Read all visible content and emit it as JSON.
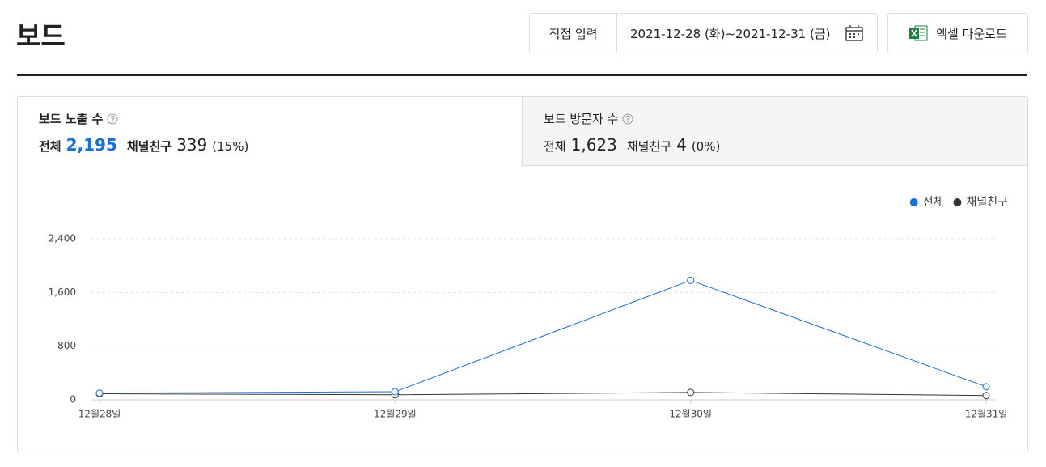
{
  "header": {
    "title": "보드",
    "date_mode": "직접 입력",
    "date_range": "2021-12-28 (화)~2021-12-31 (금)",
    "download": "엑셀 다운로드"
  },
  "tabs": [
    {
      "title": "보드 노출 수",
      "total_label": "전체",
      "total": "2,195",
      "friend_label": "채널친구",
      "friend": "339",
      "friend_ratio": "(15%)"
    },
    {
      "title": "보드 방문자 수",
      "total_label": "전체",
      "total": "1,623",
      "friend_label": "채널친구",
      "friend": "4",
      "friend_ratio": "(0%)"
    }
  ],
  "chart_data": {
    "type": "line",
    "categories": [
      "12월28일",
      "12월29일",
      "12월30일",
      "12월31일"
    ],
    "series": [
      {
        "name": "전체",
        "color": "#1a6fd6",
        "values": [
          100,
          120,
          1780,
          195
        ]
      },
      {
        "name": "채널친구",
        "color": "#333333",
        "values": [
          90,
          75,
          110,
          64
        ]
      }
    ],
    "ylim": [
      0,
      2400
    ],
    "yticks": [
      0,
      {
        "value": 800,
        "label": "800"
      },
      {
        "value": 1600,
        "label": "1,600"
      },
      {
        "value": 2400,
        "label": "2,400"
      }
    ],
    "grid": true,
    "legend": "top-right"
  }
}
